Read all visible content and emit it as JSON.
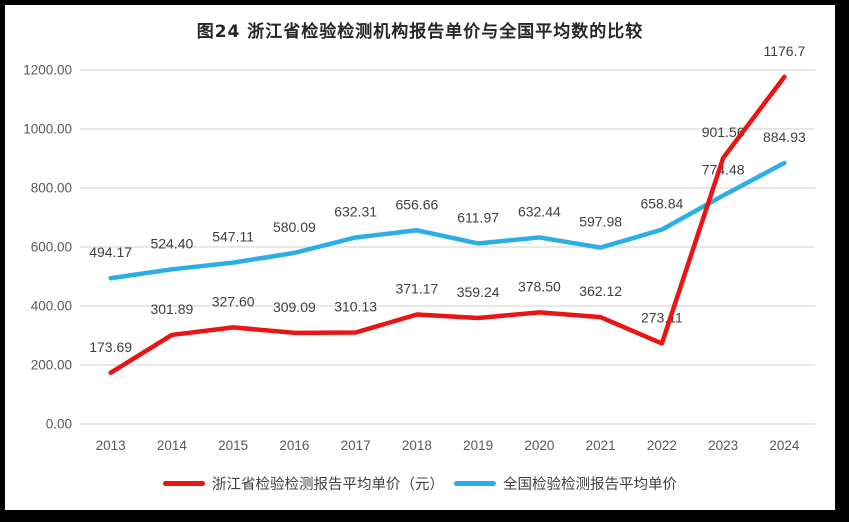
{
  "title": "图24  浙江省检验检测机构报告单价与全国平均数的比较",
  "chart_data": {
    "type": "line",
    "categories": [
      "2013",
      "2014",
      "2015",
      "2016",
      "2017",
      "2018",
      "2019",
      "2020",
      "2021",
      "2022",
      "2023",
      "2024"
    ],
    "series": [
      {
        "name": "浙江省检验检测报告平均单价（元）",
        "color": "#EC1313",
        "values": [
          173.69,
          301.89,
          327.6,
          309.09,
          310.13,
          371.17,
          359.24,
          378.5,
          362.12,
          273.11,
          901.56,
          1176.7
        ],
        "labels": [
          "173.69",
          "301.89",
          "327.60",
          "309.09",
          "310.13",
          "371.17",
          "359.24",
          "378.50",
          "362.12",
          "273.11",
          "901.56",
          "1176.7"
        ]
      },
      {
        "name": "全国检验检测报告平均单价",
        "color": "#2BAEE5",
        "values": [
          494.17,
          524.4,
          547.11,
          580.09,
          632.31,
          656.66,
          611.97,
          632.44,
          597.98,
          658.84,
          774.48,
          884.93
        ],
        "labels": [
          "494.17",
          "524.40",
          "547.11",
          "580.09",
          "632.31",
          "656.66",
          "611.97",
          "632.44",
          "597.98",
          "658.84",
          "774.48",
          "884.93"
        ]
      }
    ],
    "title": "图24  浙江省检验检测机构报告单价与全国平均数的比较",
    "xlabel": "",
    "ylabel": "",
    "ylim": [
      0,
      1200
    ],
    "y_ticks": [
      "0.00",
      "200.00",
      "400.00",
      "600.00",
      "800.00",
      "1000.00",
      "1200.00"
    ],
    "grid": true,
    "gridline_color": "#D9D9D9",
    "legend_position": "bottom"
  }
}
